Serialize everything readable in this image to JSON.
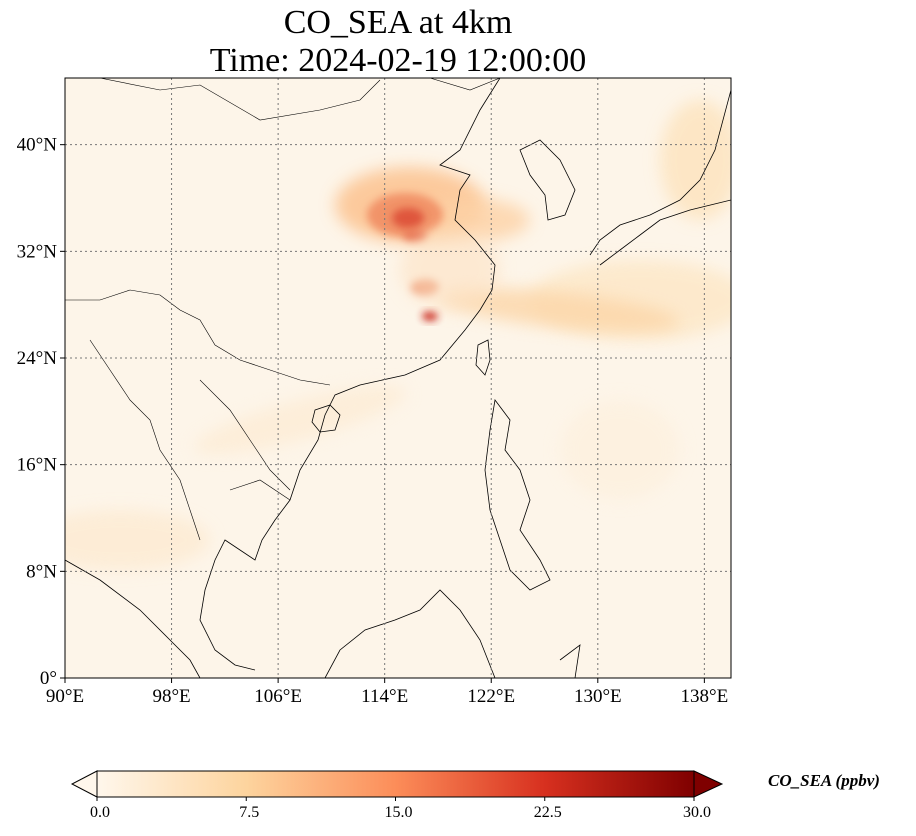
{
  "title": {
    "line1": "CO_SEA at 4km",
    "line2": "Time: 2024-02-19 12:00:00"
  },
  "map": {
    "region": "East and Southeast Asia",
    "lon_range_deg": [
      90,
      140
    ],
    "lat_range_deg": [
      0,
      45
    ],
    "lon_ticks": [
      "90°E",
      "98°E",
      "106°E",
      "114°E",
      "122°E",
      "130°E",
      "138°E"
    ],
    "lat_ticks": [
      "0°",
      "8°N",
      "16°N",
      "24°N",
      "32°N",
      "40°N"
    ],
    "gridlines": "dotted gray",
    "plume_colors": [
      "#fdf5e8",
      "#fdd49e",
      "#fc8d59",
      "#d7301f",
      "#7f0000"
    ]
  },
  "colorbar": {
    "label": "CO_SEA (ppbv)",
    "min": 0.0,
    "max": 30.0,
    "ticks": [
      "0.0",
      "7.5",
      "15.0",
      "22.5",
      "30.0"
    ],
    "extend": "both",
    "colormap": "OrRd"
  }
}
